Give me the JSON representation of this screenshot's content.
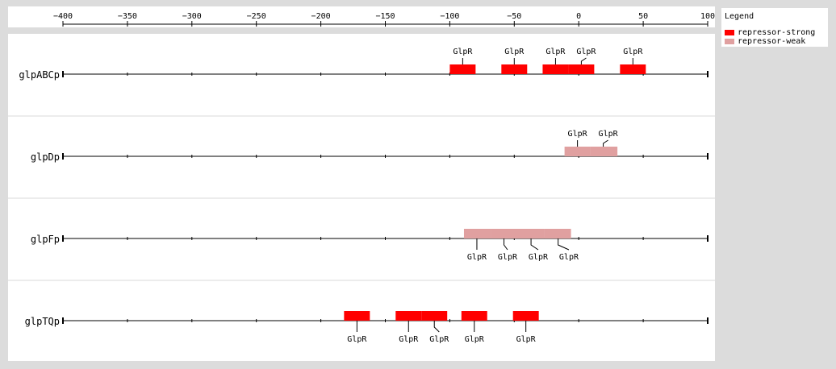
{
  "axis": {
    "min": -400,
    "max": 100,
    "ticks": [
      -400,
      -350,
      -300,
      -250,
      -200,
      -150,
      -100,
      -50,
      0,
      50,
      100
    ]
  },
  "legend": {
    "title": "Legend",
    "items": [
      {
        "key": "strong",
        "label": "repressor-strong",
        "color": "#ff0000"
      },
      {
        "key": "weak",
        "label": "repressor-weak",
        "color": "#e0a0a0"
      }
    ]
  },
  "tracks": [
    {
      "name": "glpABCp",
      "label_side": "above",
      "sites": [
        {
          "start": -100,
          "end": -80,
          "type": "strong"
        },
        {
          "start": -60,
          "end": -40,
          "type": "strong"
        },
        {
          "start": -28,
          "end": -8,
          "type": "strong"
        },
        {
          "start": -8,
          "end": 12,
          "type": "strong"
        },
        {
          "start": 32,
          "end": 52,
          "type": "strong"
        }
      ],
      "labels": [
        {
          "text": "GlpR",
          "pos": -90
        },
        {
          "text": "GlpR",
          "pos": -50
        },
        {
          "text": "GlpR",
          "pos": -18
        },
        {
          "text": "GlpR",
          "pos": 2
        },
        {
          "text": "GlpR",
          "pos": 42
        }
      ]
    },
    {
      "name": "glpDp",
      "label_side": "above",
      "sites": [
        {
          "start": -11,
          "end": 9,
          "type": "weak"
        },
        {
          "start": 9,
          "end": 30,
          "type": "weak"
        }
      ],
      "labels": [
        {
          "text": "GlpR",
          "pos": -1
        },
        {
          "text": "GlpR",
          "pos": 19
        }
      ]
    },
    {
      "name": "glpFp",
      "label_side": "below",
      "sites": [
        {
          "start": -89,
          "end": -68,
          "type": "weak"
        },
        {
          "start": -68,
          "end": -48,
          "type": "weak"
        },
        {
          "start": -48,
          "end": -27,
          "type": "weak"
        },
        {
          "start": -27,
          "end": -6,
          "type": "weak"
        }
      ],
      "labels": [
        {
          "text": "GlpR",
          "pos": -79
        },
        {
          "text": "GlpR",
          "pos": -58
        },
        {
          "text": "GlpR",
          "pos": -37
        },
        {
          "text": "GlpR",
          "pos": -16
        }
      ]
    },
    {
      "name": "glpTQp",
      "label_side": "below",
      "sites": [
        {
          "start": -182,
          "end": -162,
          "type": "strong"
        },
        {
          "start": -142,
          "end": -122,
          "type": "strong"
        },
        {
          "start": -122,
          "end": -102,
          "type": "strong"
        },
        {
          "start": -91,
          "end": -71,
          "type": "strong"
        },
        {
          "start": -51,
          "end": -31,
          "type": "strong"
        }
      ],
      "labels": [
        {
          "text": "GlpR",
          "pos": -172
        },
        {
          "text": "GlpR",
          "pos": -132
        },
        {
          "text": "GlpR",
          "pos": -112
        },
        {
          "text": "GlpR",
          "pos": -81
        },
        {
          "text": "GlpR",
          "pos": -41
        }
      ]
    }
  ]
}
